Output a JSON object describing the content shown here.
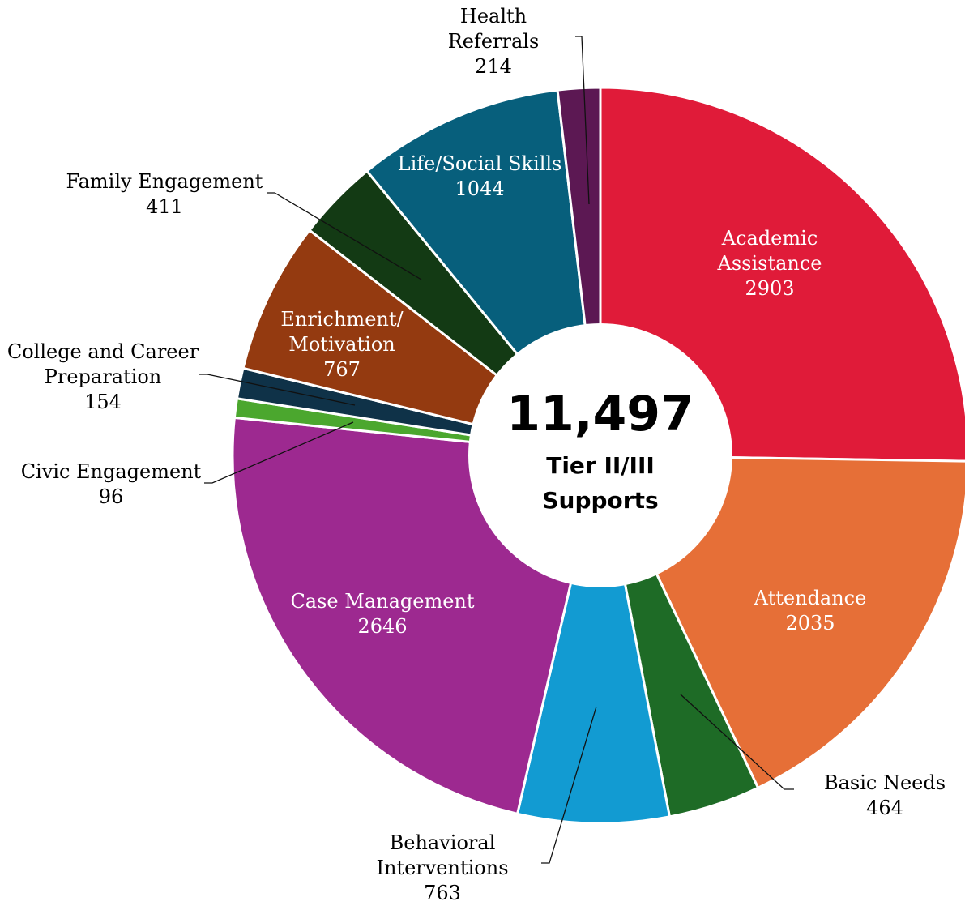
{
  "chart_data": {
    "type": "pie",
    "style": "donut",
    "total": 11497,
    "center_value": "11,497",
    "center_label_lines": [
      "Tier II/III",
      "Supports"
    ],
    "slices": [
      {
        "name_lines": [
          "Academic",
          "Assistance"
        ],
        "value": 2903,
        "value_label": "2903",
        "color": "#e01b39"
      },
      {
        "name_lines": [
          "Attendance"
        ],
        "value": 2035,
        "value_label": "2035",
        "color": "#e66f37"
      },
      {
        "name_lines": [
          "Basic Needs"
        ],
        "value": 464,
        "value_label": "464",
        "color": "#1e6b26"
      },
      {
        "name_lines": [
          "Behavioral",
          "Interventions"
        ],
        "value": 763,
        "value_label": "763",
        "color": "#129bd2"
      },
      {
        "name_lines": [
          "Case Management"
        ],
        "value": 2646,
        "value_label": "2646",
        "color": "#9d2990"
      },
      {
        "name_lines": [
          "Civic Engagement"
        ],
        "value": 96,
        "value_label": "96",
        "color": "#4ba72e"
      },
      {
        "name_lines": [
          "College and Career",
          "Preparation"
        ],
        "value": 154,
        "value_label": "154",
        "color": "#0f3248"
      },
      {
        "name_lines": [
          "Enrichment/",
          "Motivation"
        ],
        "value": 767,
        "value_label": "767",
        "color": "#943a10"
      },
      {
        "name_lines": [
          "Family Engagement"
        ],
        "value": 411,
        "value_label": "411",
        "color": "#133a14"
      },
      {
        "name_lines": [
          "Life/Social Skills"
        ],
        "value": 1044,
        "value_label": "1044",
        "color": "#075f7c"
      },
      {
        "name_lines": [
          "Health",
          "Referrals"
        ],
        "value": 214,
        "value_label": "214",
        "color": "#5c1853"
      }
    ]
  }
}
